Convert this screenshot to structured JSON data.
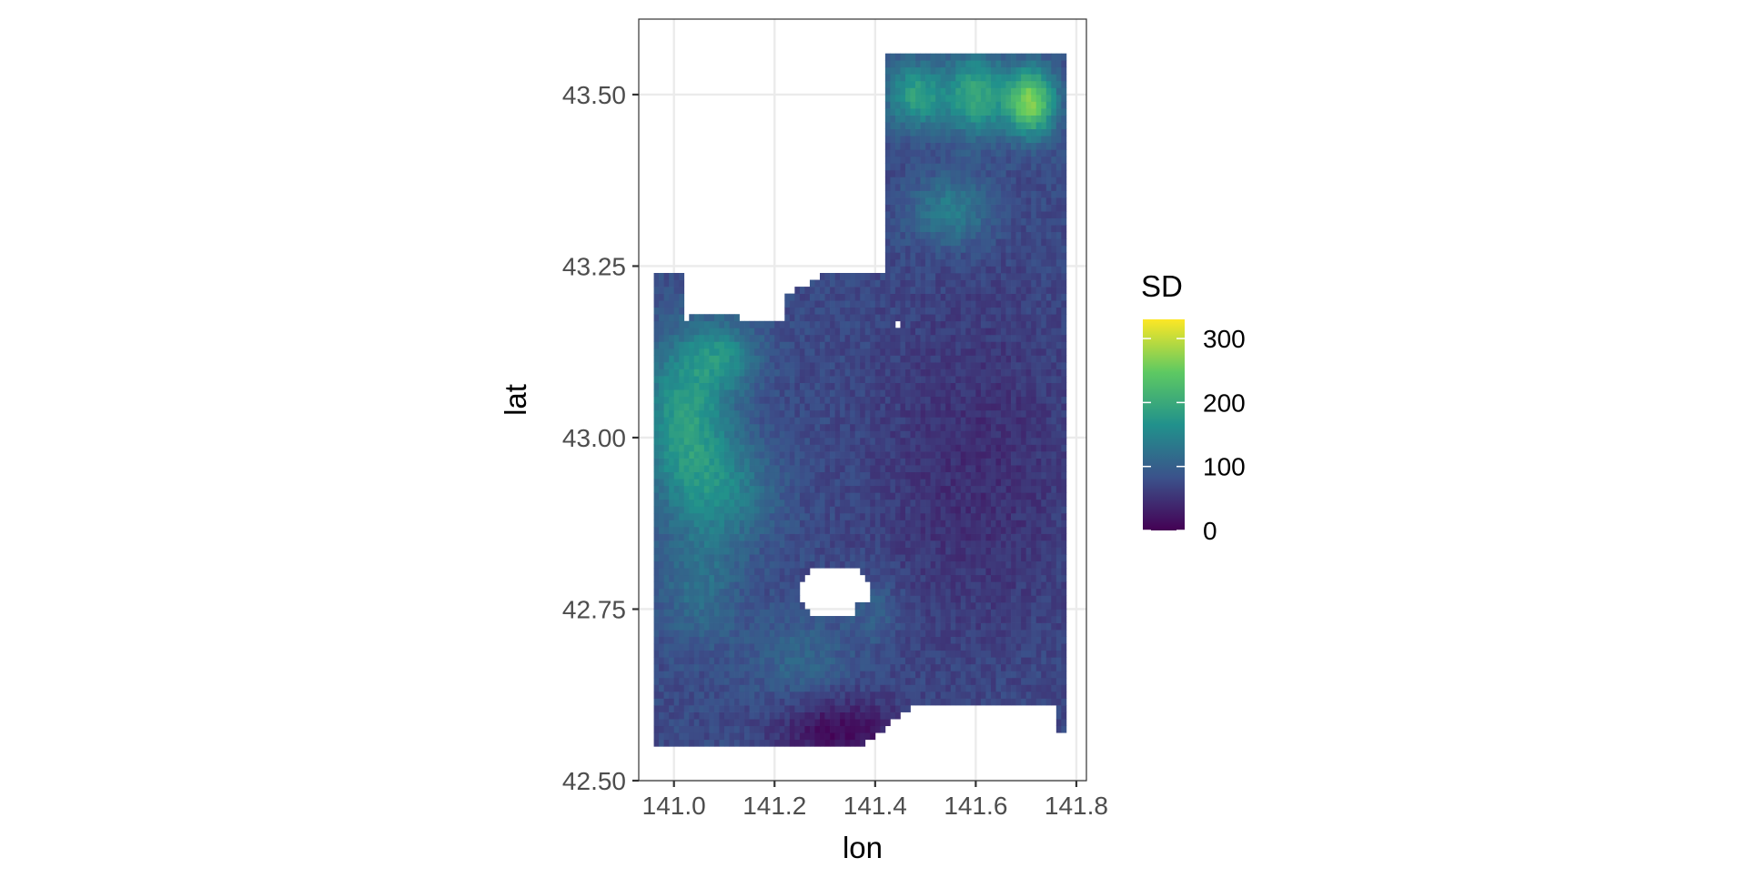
{
  "chart_data": {
    "type": "heatmap",
    "title": "",
    "xlabel": "lon",
    "ylabel": "lat",
    "xlim": [
      140.93,
      141.82
    ],
    "ylim": [
      42.5,
      43.61
    ],
    "x_ticks": [
      141.0,
      141.2,
      141.4,
      141.6,
      141.8
    ],
    "x_tick_labels": [
      "141.0",
      "141.2",
      "141.4",
      "141.6",
      "141.8"
    ],
    "y_ticks": [
      42.5,
      42.75,
      43.0,
      43.25,
      43.5
    ],
    "y_tick_labels": [
      "42.50",
      "42.75",
      "43.00",
      "43.25",
      "43.50"
    ],
    "grid": true,
    "cell_size_deg": 0.01,
    "data_extent": {
      "lon": [
        140.96,
        141.78
      ],
      "lat": [
        42.55,
        43.56
      ]
    },
    "legend": {
      "title": "SD",
      "position": "right",
      "range": [
        0,
        330
      ],
      "ticks": [
        0,
        100,
        200,
        300
      ],
      "tick_labels": [
        "0",
        "100",
        "200",
        "300"
      ],
      "colormap": "viridis",
      "colors": [
        "#440154",
        "#3b528b",
        "#21918c",
        "#5ec962",
        "#fde725"
      ]
    },
    "value_field": {
      "description_values_in_SD_units": true,
      "peaks": [
        {
          "lon": 141.7,
          "lat": 43.49,
          "value": 310
        },
        {
          "lon": 141.62,
          "lat": 43.52,
          "value": 260
        },
        {
          "lon": 141.5,
          "lat": 43.5,
          "value": 230
        },
        {
          "lon": 141.42,
          "lat": 43.47,
          "value": 215
        },
        {
          "lon": 141.02,
          "lat": 43.03,
          "value": 185
        },
        {
          "lon": 141.1,
          "lat": 43.1,
          "value": 160
        },
        {
          "lon": 141.1,
          "lat": 42.92,
          "value": 150
        },
        {
          "lon": 141.05,
          "lat": 42.8,
          "value": 120
        },
        {
          "lon": 141.25,
          "lat": 42.68,
          "value": 110
        }
      ],
      "low_area": {
        "lon": 141.33,
        "lat": 42.57,
        "value": 10
      }
    },
    "masked_regions": [
      "bay in upper middle (lon 140.98-141.40, lat 43.17-43.56)",
      "hole near lon 141.32, lat 42.77",
      "coastline along southern edge east of lon 141.38"
    ]
  }
}
